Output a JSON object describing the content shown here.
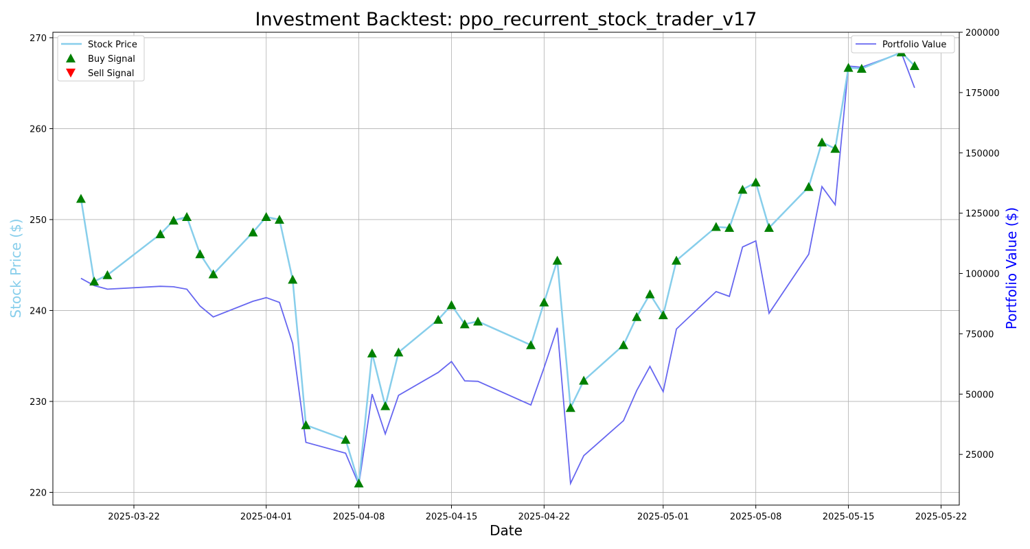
{
  "chart_data": {
    "type": "line",
    "title": "Investment Backtest: ppo_recurrent_stock_trader_v17",
    "xlabel": "Date",
    "ylabel_left": "Stock Price ($)",
    "ylabel_right": "Portfolio Value ($)",
    "colors": {
      "price": "#87ceeb",
      "portfolio": "#6666f0",
      "buy": "#008000",
      "sell": "#ff0000",
      "left_axis_title": "#87ceeb",
      "right_axis_title": "#0000ff"
    },
    "x_ticks": [
      "2025-03-22",
      "2025-04-01",
      "2025-04-08",
      "2025-04-15",
      "2025-04-22",
      "2025-05-01",
      "2025-05-08",
      "2025-05-15",
      "2025-05-22"
    ],
    "y_left": {
      "lim": [
        218.6,
        270.6
      ],
      "ticks": [
        220,
        230,
        240,
        250,
        260,
        270
      ]
    },
    "y_right": {
      "lim": [
        4000,
        200000
      ],
      "ticks": [
        25000,
        50000,
        75000,
        100000,
        125000,
        150000,
        175000,
        200000
      ]
    },
    "grid": true,
    "legend_left": {
      "placement": "upper-left",
      "entries": [
        "Stock Price",
        "Buy Signal",
        "Sell Signal"
      ]
    },
    "legend_right": {
      "placement": "upper-right",
      "entries": [
        "Portfolio Value"
      ]
    },
    "stock_price": [
      [
        "2025-03-18",
        252.3
      ],
      [
        "2025-03-19",
        243.2
      ],
      [
        "2025-03-20",
        243.9
      ],
      [
        "2025-03-24",
        248.4
      ],
      [
        "2025-03-25",
        249.9
      ],
      [
        "2025-03-26",
        250.3
      ],
      [
        "2025-03-27",
        246.2
      ],
      [
        "2025-03-28",
        244.0
      ],
      [
        "2025-03-31",
        248.6
      ],
      [
        "2025-04-01",
        250.3
      ],
      [
        "2025-04-02",
        250.0
      ],
      [
        "2025-04-03",
        243.4
      ],
      [
        "2025-04-04",
        227.4
      ],
      [
        "2025-04-07",
        225.8
      ],
      [
        "2025-04-08",
        221.0
      ],
      [
        "2025-04-09",
        235.3
      ],
      [
        "2025-04-10",
        229.5
      ],
      [
        "2025-04-11",
        235.4
      ],
      [
        "2025-04-14",
        239.0
      ],
      [
        "2025-04-15",
        240.6
      ],
      [
        "2025-04-16",
        238.5
      ],
      [
        "2025-04-17",
        238.8
      ],
      [
        "2025-04-21",
        236.2
      ],
      [
        "2025-04-22",
        240.9
      ],
      [
        "2025-04-23",
        245.5
      ],
      [
        "2025-04-24",
        229.3
      ],
      [
        "2025-04-25",
        232.3
      ],
      [
        "2025-04-28",
        236.2
      ],
      [
        "2025-04-29",
        239.3
      ],
      [
        "2025-04-30",
        241.8
      ],
      [
        "2025-05-01",
        239.5
      ],
      [
        "2025-05-02",
        245.5
      ],
      [
        "2025-05-05",
        249.2
      ],
      [
        "2025-05-06",
        249.1
      ],
      [
        "2025-05-07",
        253.3
      ],
      [
        "2025-05-08",
        254.1
      ],
      [
        "2025-05-09",
        249.1
      ],
      [
        "2025-05-12",
        253.6
      ],
      [
        "2025-05-13",
        258.5
      ],
      [
        "2025-05-14",
        257.8
      ],
      [
        "2025-05-15",
        266.7
      ],
      [
        "2025-05-16",
        266.6
      ],
      [
        "2025-05-19",
        268.4
      ],
      [
        "2025-05-20",
        266.9
      ]
    ],
    "portfolio_value": [
      [
        "2025-03-18",
        98000
      ],
      [
        "2025-03-19",
        95000
      ],
      [
        "2025-03-20",
        93500
      ],
      [
        "2025-03-24",
        94700
      ],
      [
        "2025-03-25",
        94500
      ],
      [
        "2025-03-26",
        93500
      ],
      [
        "2025-03-27",
        86500
      ],
      [
        "2025-03-28",
        82000
      ],
      [
        "2025-03-31",
        88500
      ],
      [
        "2025-04-01",
        90000
      ],
      [
        "2025-04-02",
        88000
      ],
      [
        "2025-04-03",
        71000
      ],
      [
        "2025-04-04",
        30000
      ],
      [
        "2025-04-07",
        25500
      ],
      [
        "2025-04-08",
        12500
      ],
      [
        "2025-04-09",
        50000
      ],
      [
        "2025-04-10",
        33500
      ],
      [
        "2025-04-11",
        49500
      ],
      [
        "2025-04-14",
        59000
      ],
      [
        "2025-04-15",
        63500
      ],
      [
        "2025-04-16",
        55500
      ],
      [
        "2025-04-17",
        55300
      ],
      [
        "2025-04-21",
        45500
      ],
      [
        "2025-04-22",
        61000
      ],
      [
        "2025-04-23",
        77500
      ],
      [
        "2025-04-24",
        13000
      ],
      [
        "2025-04-25",
        24500
      ],
      [
        "2025-04-28",
        39000
      ],
      [
        "2025-04-29",
        51500
      ],
      [
        "2025-04-30",
        61500
      ],
      [
        "2025-05-01",
        51000
      ],
      [
        "2025-05-02",
        77000
      ],
      [
        "2025-05-05",
        92500
      ],
      [
        "2025-05-06",
        90500
      ],
      [
        "2025-05-07",
        111000
      ],
      [
        "2025-05-08",
        113500
      ],
      [
        "2025-05-09",
        83500
      ],
      [
        "2025-05-12",
        108000
      ],
      [
        "2025-05-13",
        136000
      ],
      [
        "2025-05-14",
        128500
      ],
      [
        "2025-05-15",
        186000
      ],
      [
        "2025-05-16",
        185500
      ],
      [
        "2025-05-19",
        191500
      ],
      [
        "2025-05-20",
        177000
      ]
    ],
    "buy_signals": [
      "2025-03-18",
      "2025-03-19",
      "2025-03-20",
      "2025-03-24",
      "2025-03-25",
      "2025-03-26",
      "2025-03-27",
      "2025-03-28",
      "2025-03-31",
      "2025-04-01",
      "2025-04-02",
      "2025-04-03",
      "2025-04-04",
      "2025-04-07",
      "2025-04-08",
      "2025-04-09",
      "2025-04-10",
      "2025-04-11",
      "2025-04-14",
      "2025-04-15",
      "2025-04-16",
      "2025-04-17",
      "2025-04-21",
      "2025-04-22",
      "2025-04-23",
      "2025-04-24",
      "2025-04-25",
      "2025-04-28",
      "2025-04-29",
      "2025-04-30",
      "2025-05-01",
      "2025-05-02",
      "2025-05-05",
      "2025-05-06",
      "2025-05-07",
      "2025-05-08",
      "2025-05-09",
      "2025-05-12",
      "2025-05-13",
      "2025-05-14",
      "2025-05-15",
      "2025-05-16",
      "2025-05-19",
      "2025-05-20"
    ],
    "sell_signals": []
  }
}
